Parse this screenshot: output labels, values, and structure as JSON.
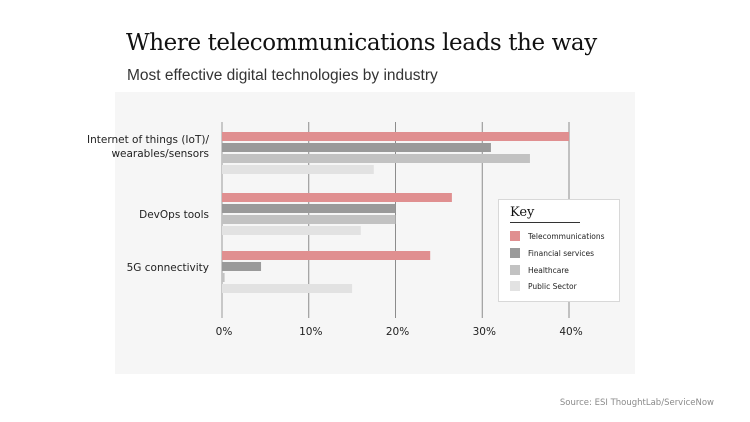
{
  "chart_data": {
    "type": "bar",
    "orientation": "horizontal",
    "title": "Where telecommunications leads the way",
    "subtitle": "Most effective digital technologies by industry",
    "categories": [
      "Internet of things (IoT)/\nwearables/sensors",
      "DevOps tools",
      "5G connectivity"
    ],
    "series": [
      {
        "name": "Telecommunications",
        "color": "#e08f90",
        "values": [
          40,
          26.5,
          24
        ]
      },
      {
        "name": "Financial services",
        "color": "#9a9a9a",
        "values": [
          31,
          20,
          4.5
        ]
      },
      {
        "name": "Healthcare",
        "color": "#c2c2c2",
        "values": [
          35.5,
          20,
          0.3
        ]
      },
      {
        "name": "Public Sector",
        "color": "#e2e2e2",
        "values": [
          17.5,
          16,
          15
        ]
      }
    ],
    "xlim": [
      0,
      40
    ],
    "xticks": [
      0,
      10,
      20,
      30,
      40
    ],
    "xtick_labels": [
      "0%",
      "10%",
      "20%",
      "30%",
      "40%"
    ],
    "grid": true,
    "legend": {
      "title": "Key",
      "placement": "right"
    },
    "source": "Source: ESI ThoughtLab/ServiceNow"
  }
}
